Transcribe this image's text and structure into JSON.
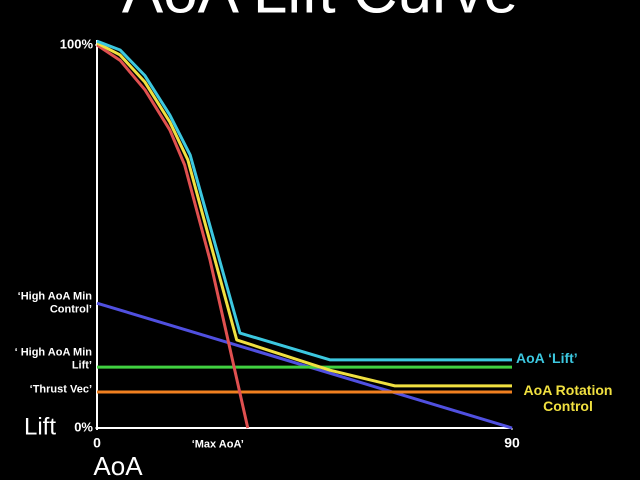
{
  "chart_data": {
    "type": "line",
    "title": "AoA Lift Curve",
    "x_label": "AoA",
    "y_label": "Lift",
    "xlim": [
      0,
      90
    ],
    "ylim": [
      0,
      100
    ],
    "xticks": [
      0,
      90
    ],
    "yticks": [
      {
        "value": 0,
        "label": "0%"
      },
      {
        "value": 100,
        "label": "100%"
      }
    ],
    "grid": false,
    "series": [
      {
        "name": "AoA ‘Lift’",
        "color": "#3cc8e0",
        "x": [
          0,
          5,
          10.4,
          15.8,
          20.2,
          31,
          50.5,
          90
        ],
        "values": [
          101,
          98.7,
          92,
          81.7,
          71.3,
          24.8,
          17.8,
          17.8
        ]
      },
      {
        "name": "AoA Rotation Control",
        "color": "#f0e040",
        "x": [
          0,
          5,
          10.4,
          15.8,
          19.7,
          30.3,
          50.5,
          64.6,
          90
        ],
        "values": [
          100.5,
          97.4,
          90.3,
          79.9,
          70,
          23,
          15.1,
          11,
          11
        ]
      },
      {
        "name": "‘Max AoA’",
        "color": "#e05050",
        "x": [
          0,
          5,
          10.4,
          15.8,
          19,
          24.5,
          32.7
        ],
        "values": [
          100,
          96,
          88.3,
          77.8,
          68.7,
          43.9,
          0
        ]
      },
      {
        "name": "‘High AoA Min Control’",
        "color": "#5050e0",
        "x": [
          0,
          90
        ],
        "values": [
          32.6,
          0
        ]
      },
      {
        "name": "‘ High AoA Min Lift’",
        "color": "#40d040",
        "x": [
          0,
          90
        ],
        "values": [
          15.9,
          15.9
        ]
      },
      {
        "name": "‘Thrust Vec’",
        "color": "#f08020",
        "x": [
          0,
          90
        ],
        "values": [
          9.4,
          9.4
        ]
      }
    ]
  }
}
